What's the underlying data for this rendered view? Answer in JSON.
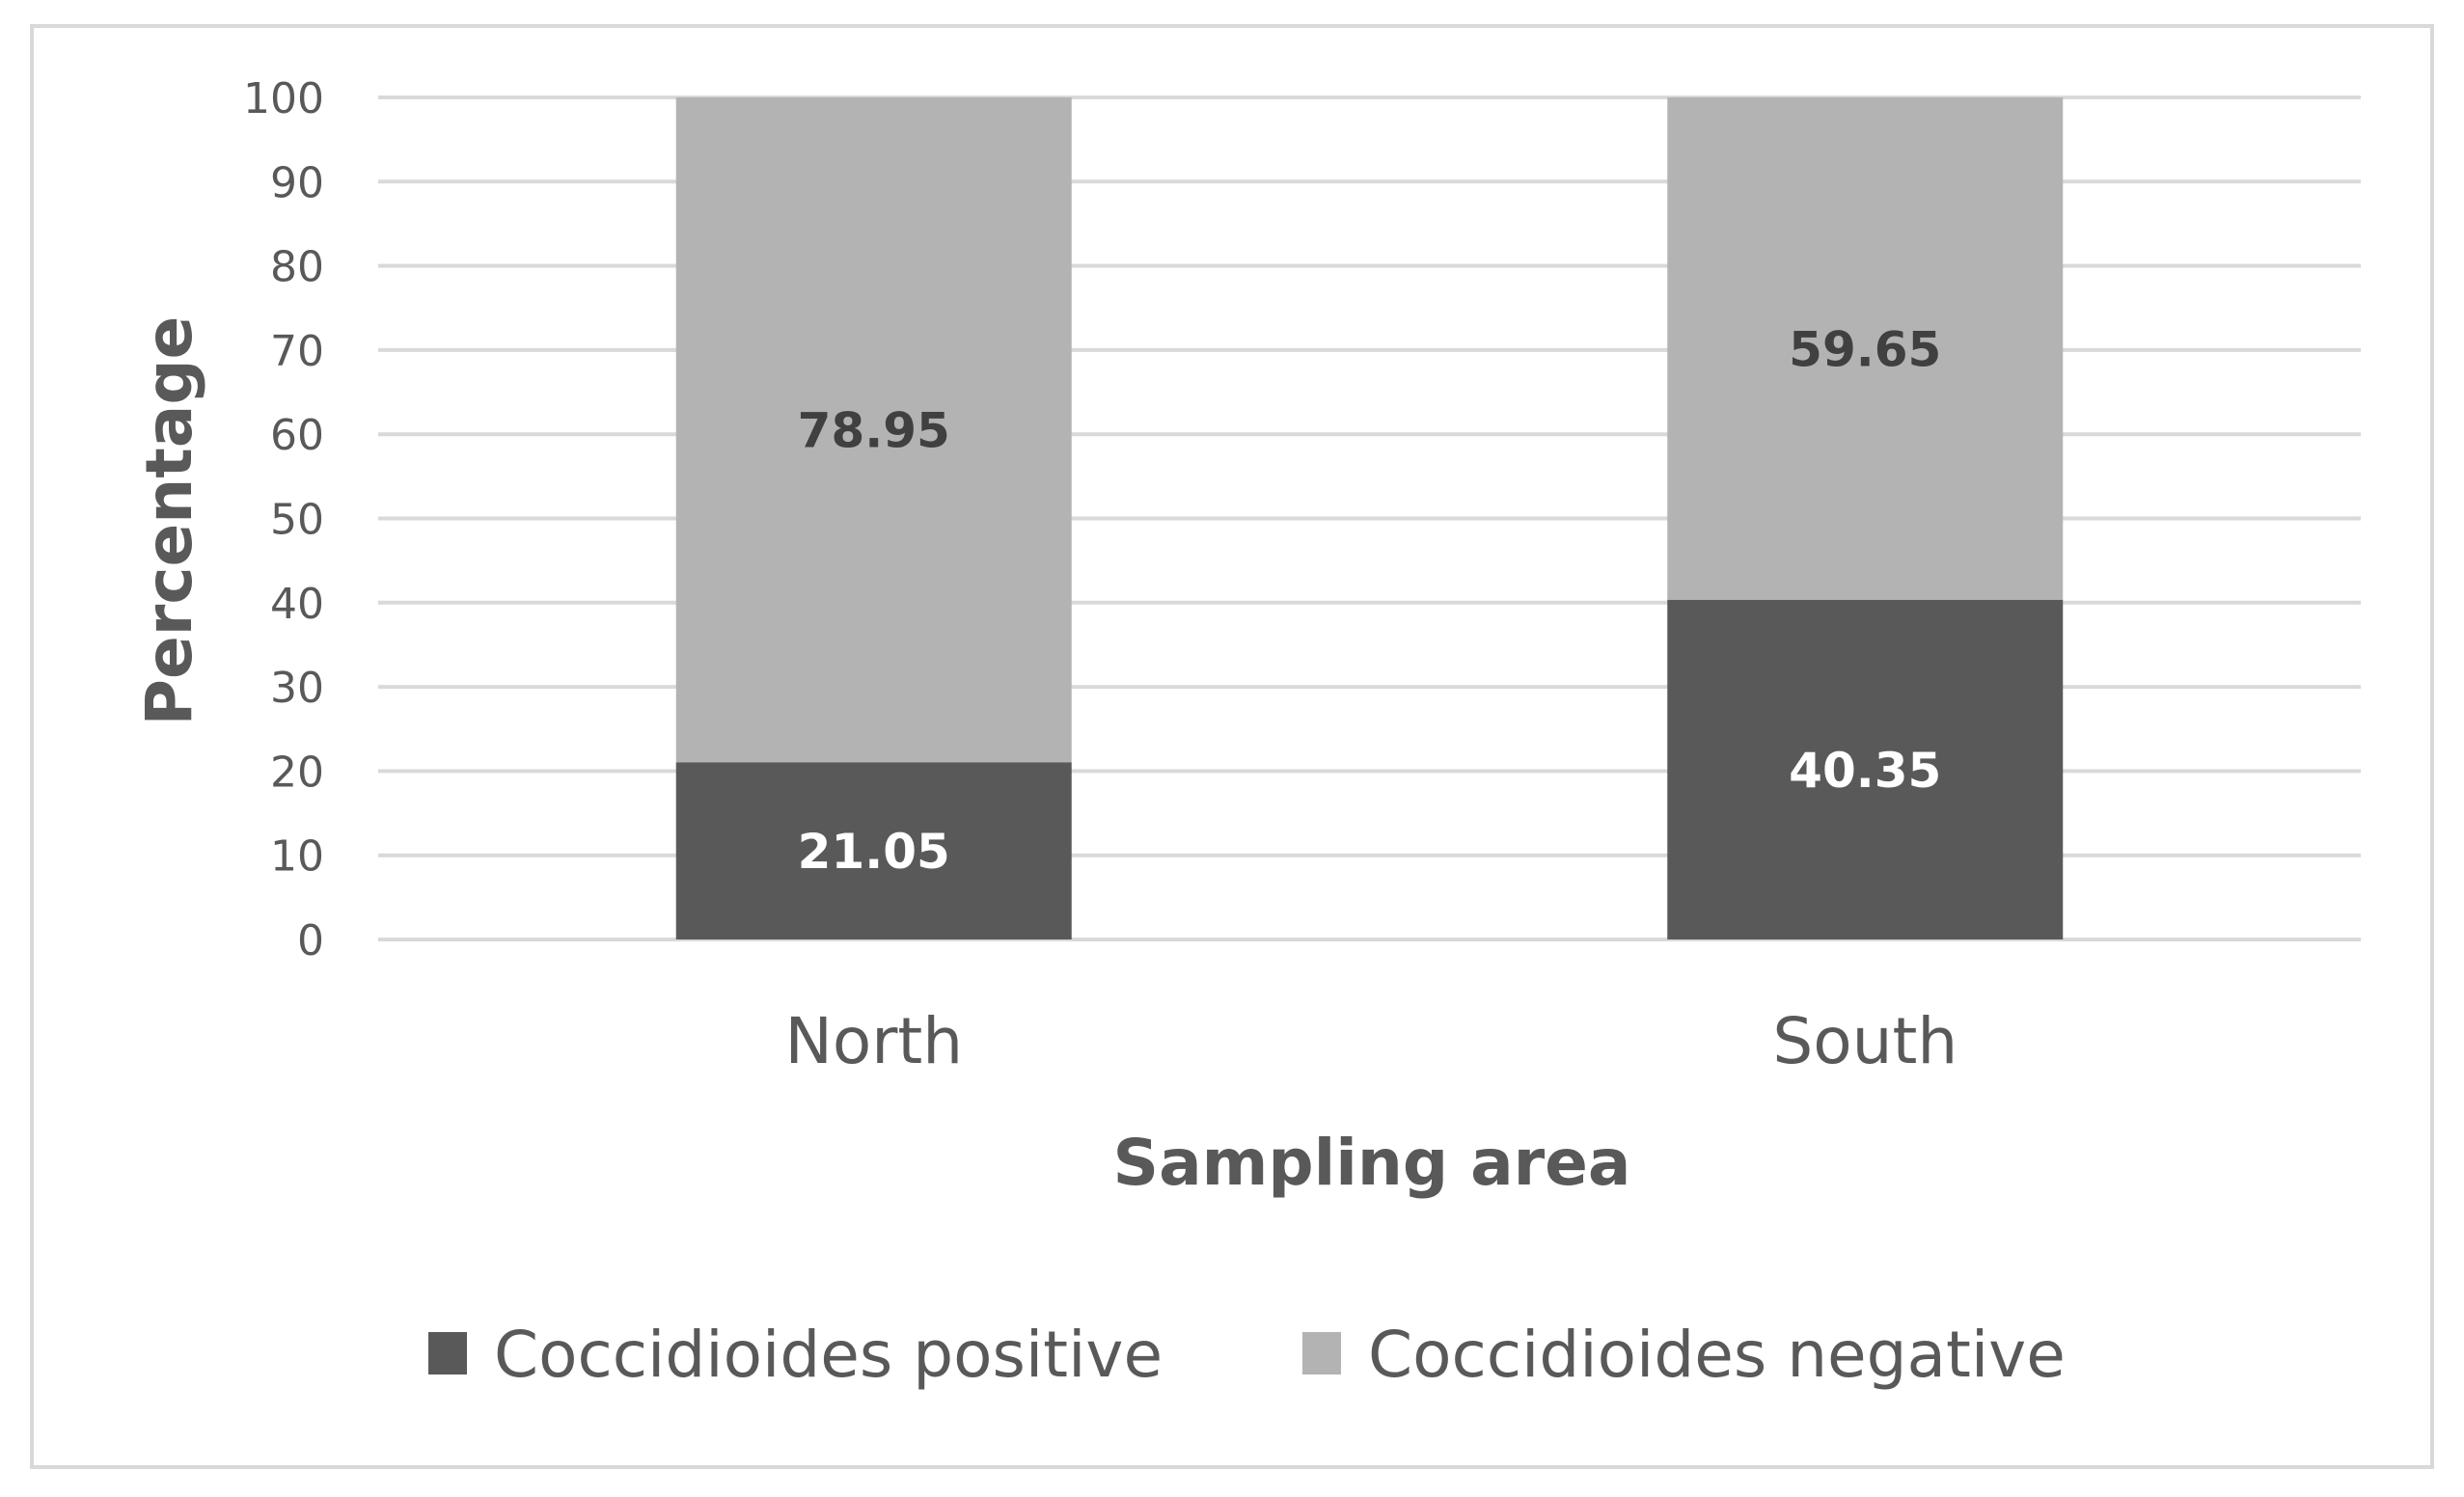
{
  "chart_data": {
    "type": "bar",
    "stacked": true,
    "categories": [
      "North",
      "South"
    ],
    "series": [
      {
        "name": "Coccidioides positive",
        "values": [
          21.05,
          40.35
        ],
        "color": "#595959",
        "label_color": "#ffffff"
      },
      {
        "name": "Coccidioides negative",
        "values": [
          78.95,
          59.65
        ],
        "color": "#b3b3b3",
        "label_color": "#404040"
      }
    ],
    "value_labels": [
      [
        "21.05",
        "40.35"
      ],
      [
        "78.95",
        "59.65"
      ]
    ],
    "xlabel": "Sampling area",
    "ylabel": "Percentage",
    "ylim": [
      0,
      100
    ],
    "yticks": [
      "0",
      "10",
      "20",
      "30",
      "40",
      "50",
      "60",
      "70",
      "80",
      "90",
      "100"
    ],
    "grid": true,
    "legend_position": "bottom",
    "colors": {
      "text": "#595959",
      "grid": "#d9d9d9",
      "frame": "#d9d9d9",
      "background": "#ffffff"
    }
  }
}
